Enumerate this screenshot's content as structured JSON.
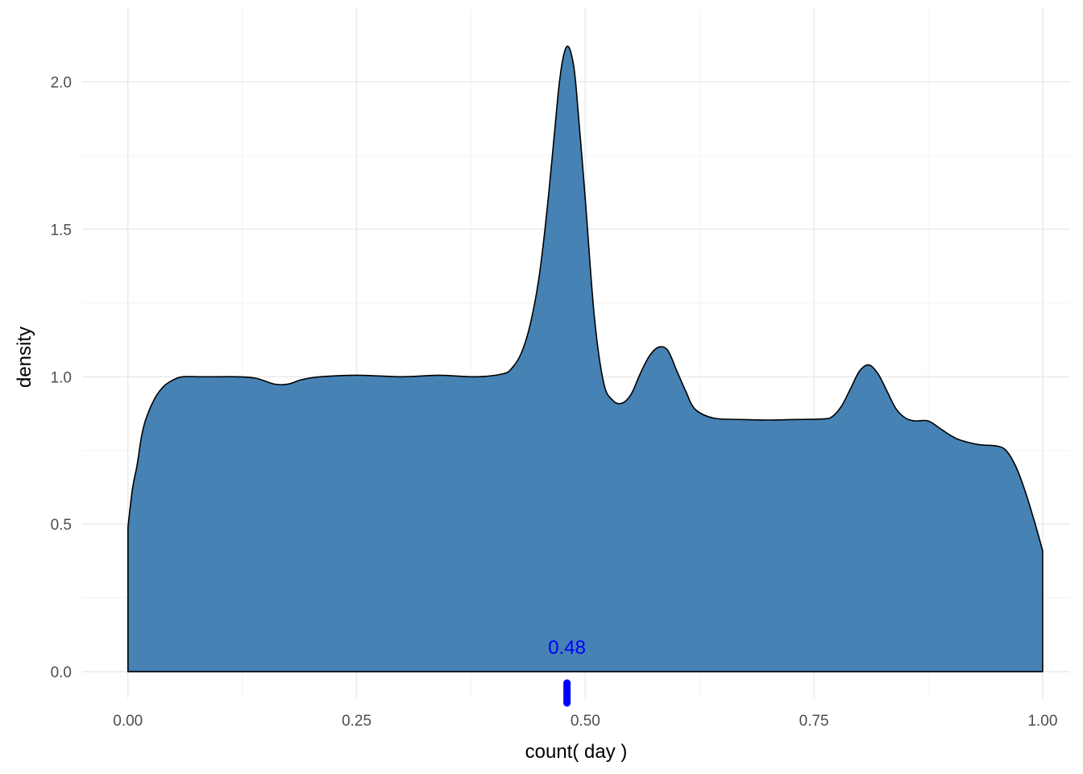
{
  "chart_data": {
    "type": "area",
    "xlabel": "count( day )",
    "ylabel": "density",
    "xlim": [
      -0.05,
      1.03
    ],
    "ylim": [
      -0.09,
      2.25
    ],
    "x_ticks": [
      0.0,
      0.25,
      0.5,
      0.75,
      1.0
    ],
    "x_tick_labels": [
      "0.00",
      "0.25",
      "0.50",
      "0.75",
      "1.00"
    ],
    "y_ticks": [
      0.0,
      0.5,
      1.0,
      1.5,
      2.0
    ],
    "y_tick_labels": [
      "0.0",
      "0.5",
      "1.0",
      "1.5",
      "2.0"
    ],
    "grid": true,
    "fill_color": "#4682b4",
    "line_color": "#000000",
    "density": {
      "x": [
        0.0,
        0.005,
        0.01,
        0.015,
        0.02,
        0.03,
        0.04,
        0.05,
        0.06,
        0.08,
        0.1,
        0.12,
        0.14,
        0.16,
        0.175,
        0.19,
        0.21,
        0.25,
        0.3,
        0.34,
        0.38,
        0.41,
        0.42,
        0.43,
        0.44,
        0.45,
        0.46,
        0.47,
        0.475,
        0.48,
        0.485,
        0.49,
        0.5,
        0.51,
        0.52,
        0.53,
        0.54,
        0.55,
        0.56,
        0.57,
        0.58,
        0.59,
        0.6,
        0.61,
        0.62,
        0.64,
        0.67,
        0.7,
        0.73,
        0.76,
        0.77,
        0.78,
        0.79,
        0.8,
        0.81,
        0.82,
        0.83,
        0.84,
        0.85,
        0.86,
        0.875,
        0.89,
        0.9,
        0.91,
        0.93,
        0.95,
        0.96,
        0.97,
        0.98,
        0.99,
        1.0
      ],
      "y": [
        0.49,
        0.62,
        0.7,
        0.8,
        0.86,
        0.93,
        0.97,
        0.99,
        1.0,
        1.0,
        1.0,
        1.0,
        0.995,
        0.975,
        0.975,
        0.99,
        1.0,
        1.005,
        1.0,
        1.005,
        1.0,
        1.01,
        1.03,
        1.08,
        1.18,
        1.35,
        1.62,
        1.95,
        2.07,
        2.12,
        2.09,
        1.98,
        1.6,
        1.2,
        0.98,
        0.92,
        0.91,
        0.94,
        1.01,
        1.07,
        1.1,
        1.09,
        1.02,
        0.95,
        0.89,
        0.86,
        0.855,
        0.853,
        0.855,
        0.857,
        0.865,
        0.9,
        0.96,
        1.02,
        1.04,
        1.01,
        0.95,
        0.89,
        0.86,
        0.85,
        0.85,
        0.82,
        0.8,
        0.785,
        0.77,
        0.765,
        0.75,
        0.7,
        0.62,
        0.52,
        0.41
      ]
    },
    "annotation": {
      "x": 0.48,
      "label": "0.48",
      "color": "#0000ff"
    }
  }
}
